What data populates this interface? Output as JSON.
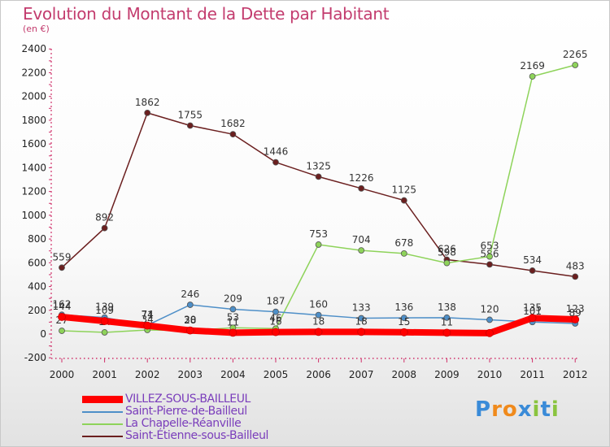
{
  "title": "Evolution du Montant de la Dette par Habitant",
  "subtitle": "(en €)",
  "logo": {
    "text": "Proxiti",
    "letter_colors": [
      "#3a8bd8",
      "#f08a1c",
      "#f08a1c",
      "#3a8bd8",
      "#8ac43f",
      "#3a8bd8",
      "#8ac43f"
    ]
  },
  "chart_data": {
    "type": "line",
    "categories": [
      "2000",
      "2001",
      "2002",
      "2003",
      "2004",
      "2005",
      "2006",
      "2007",
      "2008",
      "2009",
      "2010",
      "2011",
      "2012"
    ],
    "ylim": [
      -200,
      2400
    ],
    "yticks": [
      "-200",
      "0",
      "200",
      "400",
      "600",
      "800",
      "1000",
      "1200",
      "1400",
      "1600",
      "1800",
      "2000",
      "2200",
      "2400"
    ],
    "grid": false,
    "legend_position": "bottom-left",
    "series": [
      {
        "name": "Saint-Étienne-sous-Bailleul",
        "color": "#6b1f1f",
        "values": [
          559,
          892,
          1862,
          1755,
          1682,
          1446,
          1325,
          1226,
          1125,
          626,
          586,
          534,
          483
        ],
        "labels": [
          "559",
          "892",
          "1862",
          "1755",
          "1682",
          "1446",
          "1325",
          "1226",
          "1125",
          "626",
          "586",
          "534",
          "483"
        ]
      },
      {
        "name": "La Chapelle-Réanville",
        "color": "#8ed35a",
        "values": [
          27,
          14,
          34,
          28,
          53,
          46,
          753,
          704,
          678,
          598,
          653,
          2169,
          2265
        ],
        "labels": [
          "27",
          "14",
          "34",
          "28",
          "53",
          "46",
          "753",
          "704",
          "678",
          "598",
          "653",
          "2169",
          "2265"
        ]
      },
      {
        "name": "Saint-Pierre-de-Bailleul",
        "color": "#4e8fc8",
        "values": [
          162,
          139,
          74,
          246,
          209,
          187,
          160,
          133,
          136,
          138,
          120,
          101,
          89
        ],
        "labels": [
          "162",
          "139",
          "74",
          "246",
          "209",
          "187",
          "160",
          "133",
          "136",
          "138",
          "120",
          "101",
          "89"
        ]
      },
      {
        "name": "VILLEZ-SOUS-BAILLEUL",
        "color": "#ff0000",
        "values": [
          144,
          109,
          71,
          30,
          11,
          16,
          18,
          18,
          15,
          11,
          8,
          135,
          123
        ],
        "labels": [
          "144",
          "109",
          "71",
          "30",
          "11",
          "16",
          "18",
          "18",
          "15",
          "11",
          "",
          "135",
          "123"
        ]
      }
    ],
    "legend": [
      "VILLEZ-SOUS-BAILLEUL",
      "Saint-Pierre-de-Bailleul",
      "La Chapelle-Réanville",
      "Saint-Étienne-sous-Bailleul"
    ]
  }
}
